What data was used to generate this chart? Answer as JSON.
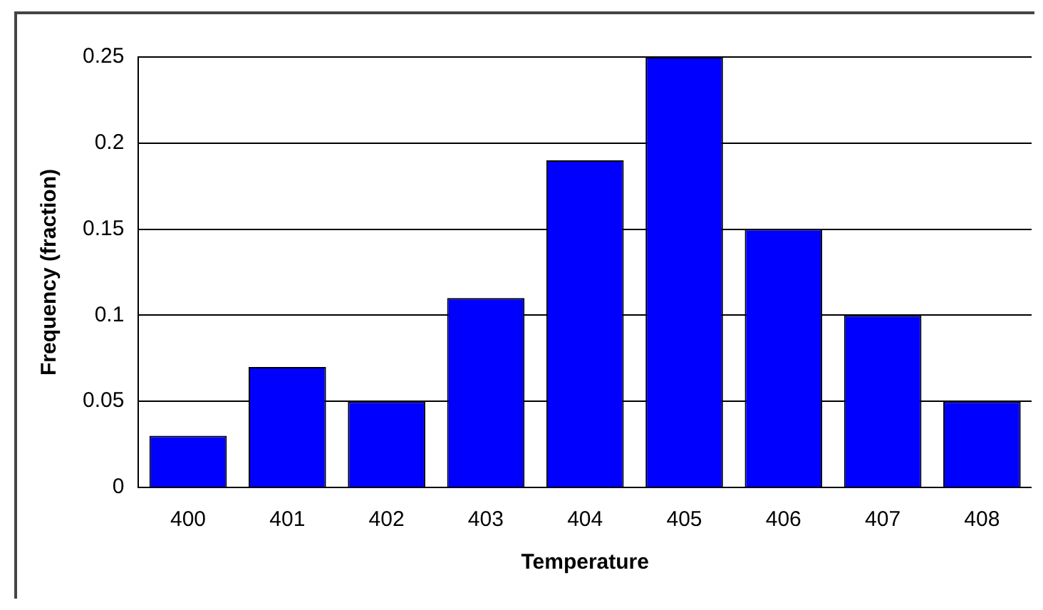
{
  "chart_data": {
    "type": "bar",
    "xlabel": "Temperature",
    "ylabel": "Frequency (fraction)",
    "categories": [
      "400",
      "401",
      "402",
      "403",
      "404",
      "405",
      "406",
      "407",
      "408"
    ],
    "values": [
      0.03,
      0.07,
      0.05,
      0.11,
      0.19,
      0.25,
      0.15,
      0.1,
      0.05
    ],
    "color": "#0000ff",
    "ylim": [
      0,
      0.25
    ],
    "yticks": [
      0,
      0.05,
      0.1,
      0.15,
      0.2,
      0.25
    ],
    "grid": "y",
    "legend": false
  }
}
